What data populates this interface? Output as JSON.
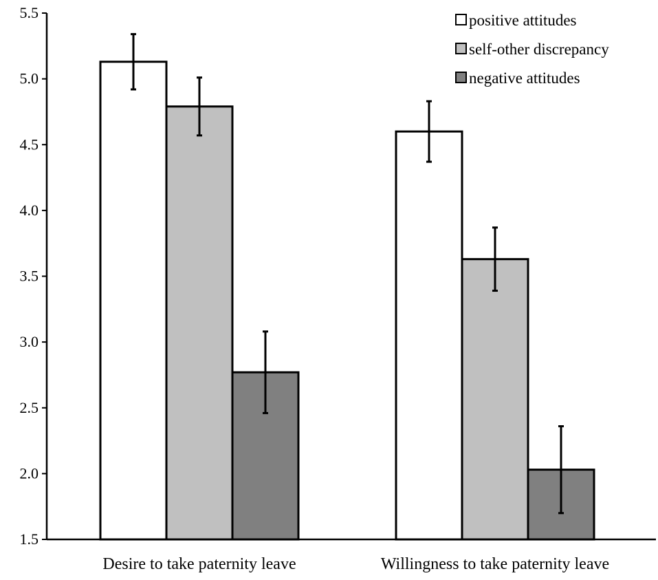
{
  "chart_data": {
    "type": "bar",
    "title": "",
    "xlabel": "",
    "ylabel": "",
    "ylim": [
      1.5,
      5.5
    ],
    "yticks": [
      "1.5",
      "2.0",
      "2.5",
      "3.0",
      "3.5",
      "4.0",
      "4.5",
      "5.0",
      "5.5"
    ],
    "ytick_values": [
      1.5,
      2.0,
      2.5,
      3.0,
      3.5,
      4.0,
      4.5,
      5.0,
      5.5
    ],
    "grid": false,
    "legend_position": "top-right",
    "categories": [
      "Desire to take paternity leave",
      "Willingness to take paternity leave"
    ],
    "series": [
      {
        "name": "positive attitudes",
        "color": "#ffffff",
        "values": [
          5.13,
          4.6
        ],
        "errors": [
          0.21,
          0.23
        ]
      },
      {
        "name": "self-other discrepancy",
        "color": "#c0c0c0",
        "values": [
          4.79,
          3.63
        ],
        "errors": [
          0.22,
          0.24
        ]
      },
      {
        "name": "negative attitudes",
        "color": "#808080",
        "values": [
          2.77,
          2.03
        ],
        "errors": [
          0.31,
          0.33
        ]
      }
    ]
  }
}
